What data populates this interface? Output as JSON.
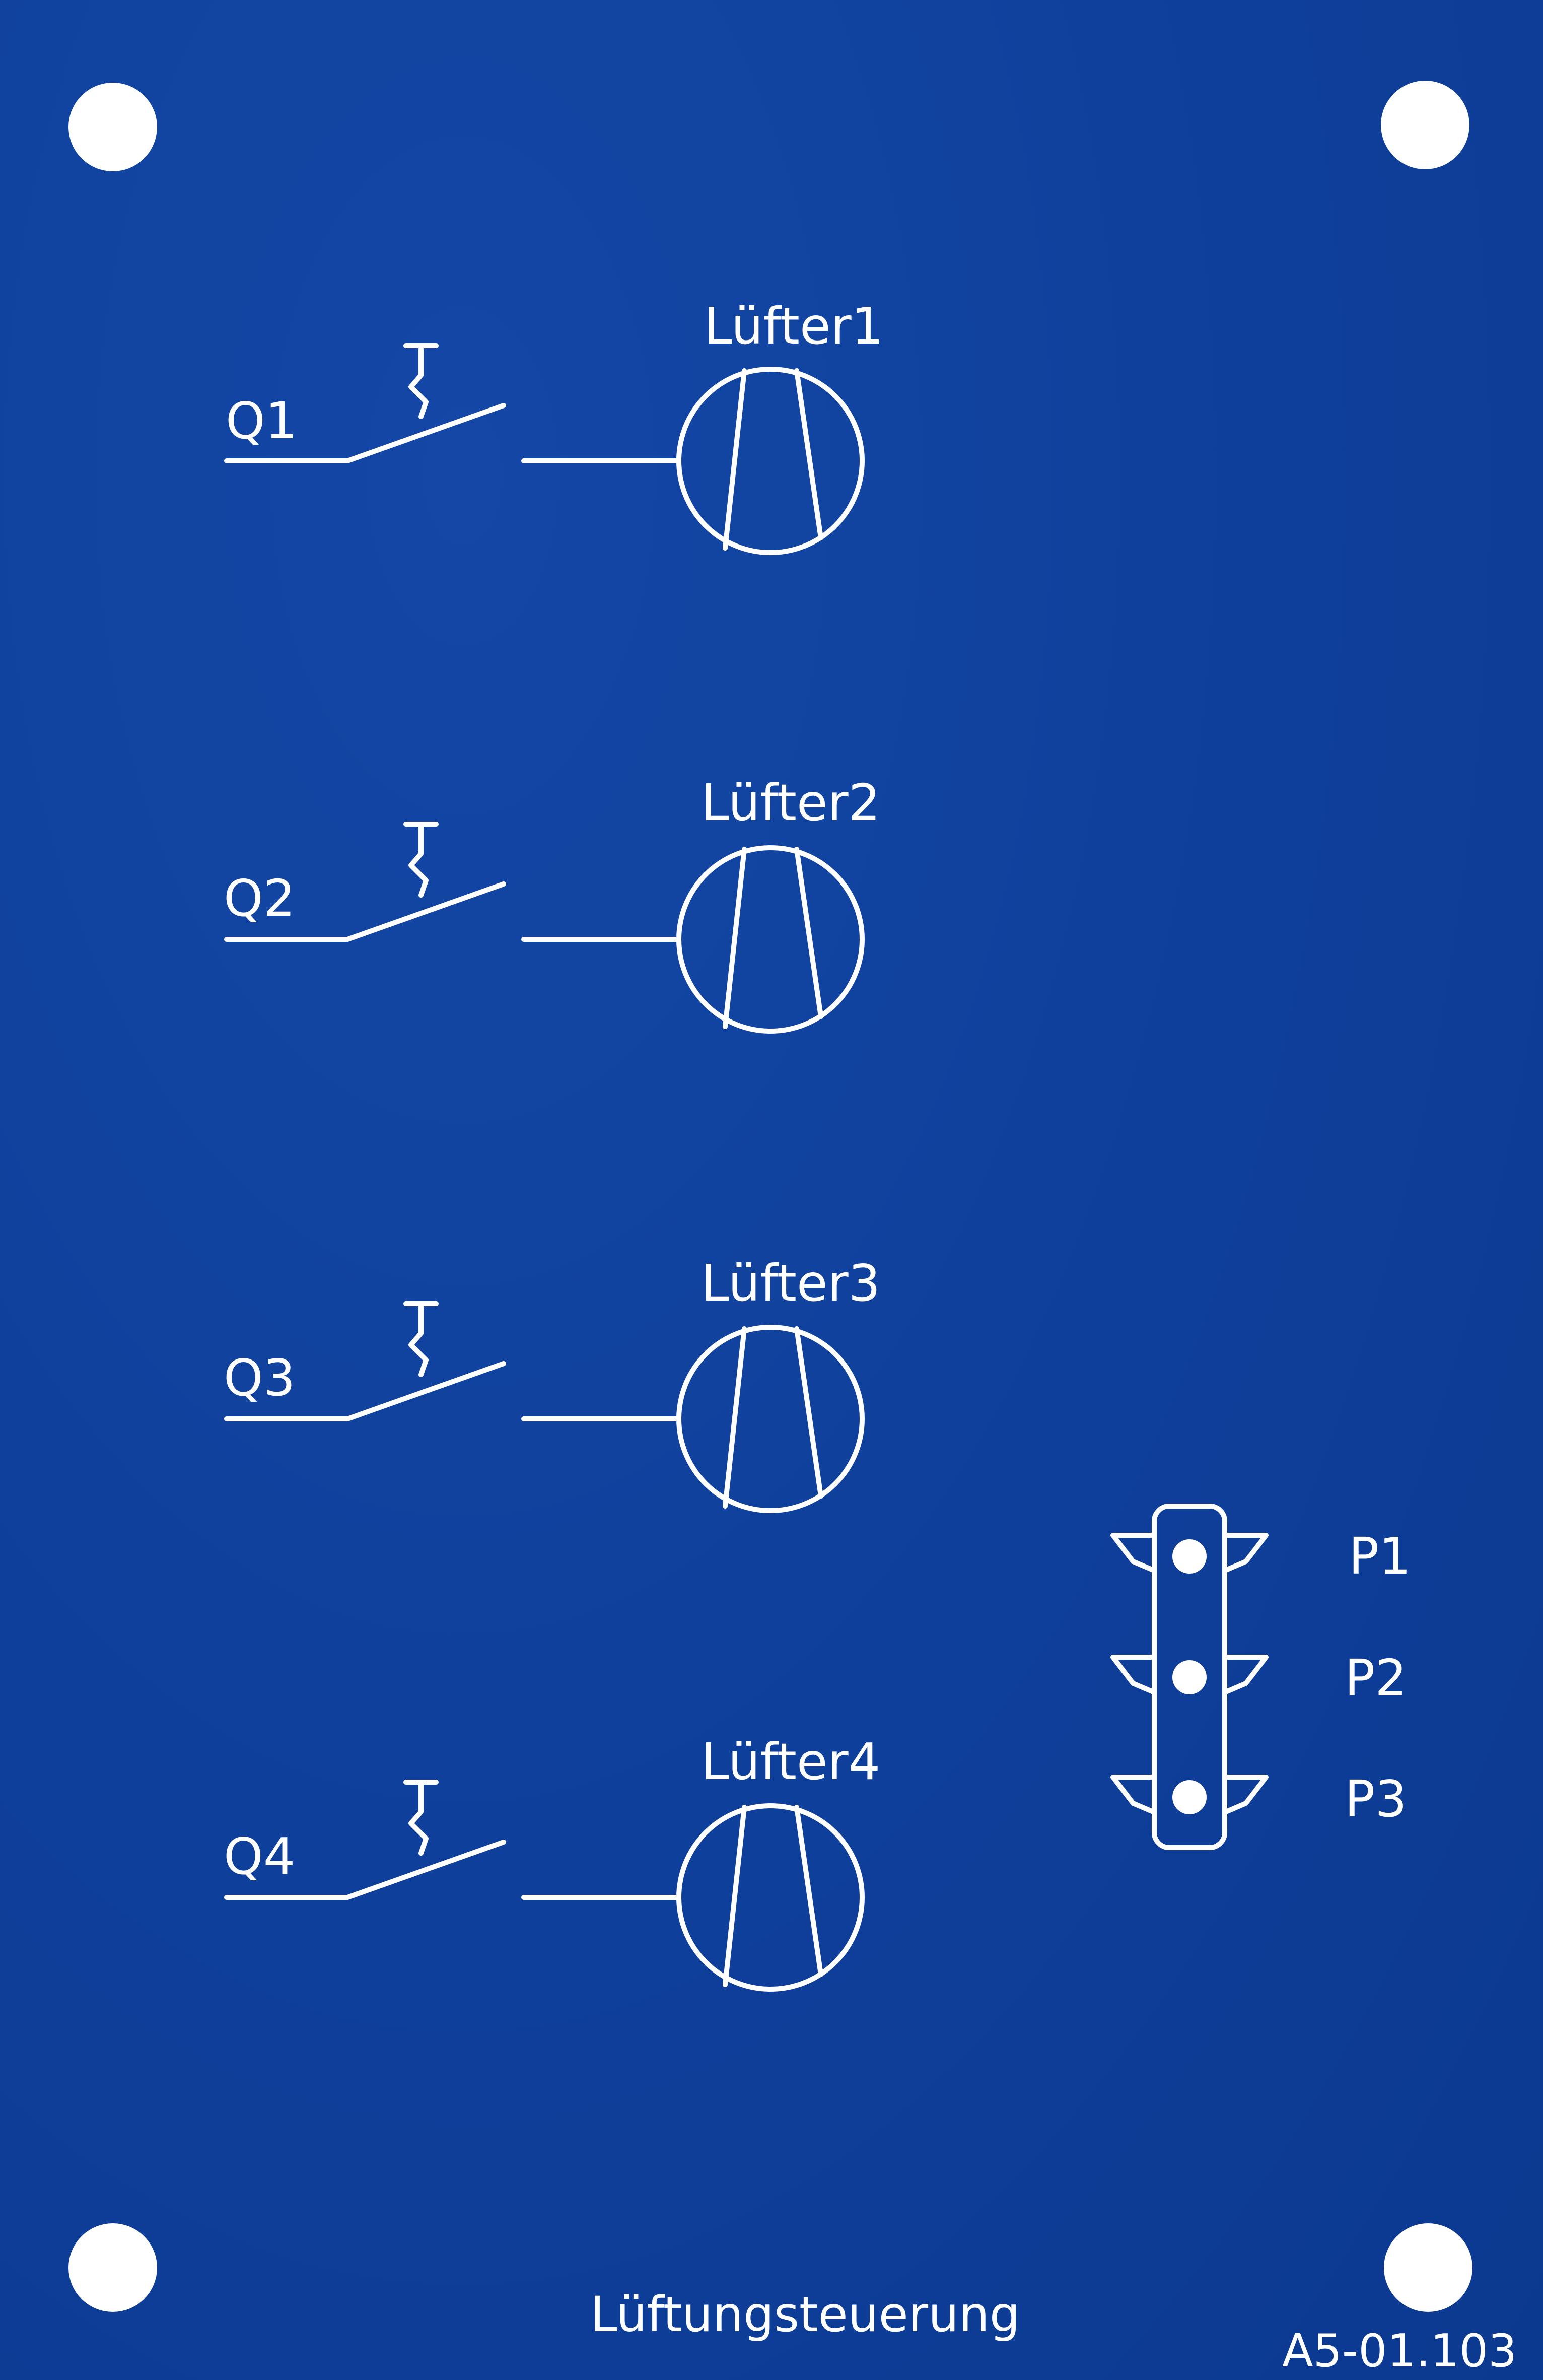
{
  "panel": {
    "title": "Lüftungsteuerung",
    "part_number": "A5-01.103",
    "background_color": "#0e3f9a",
    "print_color": "#ffffff"
  },
  "fans": [
    {
      "switch_label": "Q1",
      "fan_label": "Lüfter1"
    },
    {
      "switch_label": "Q2",
      "fan_label": "Lüfter2"
    },
    {
      "switch_label": "Q3",
      "fan_label": "Lüfter3"
    },
    {
      "switch_label": "Q4",
      "fan_label": "Lüfter4"
    }
  ],
  "indicators": [
    {
      "label": "P1"
    },
    {
      "label": "P2"
    },
    {
      "label": "P3"
    }
  ]
}
